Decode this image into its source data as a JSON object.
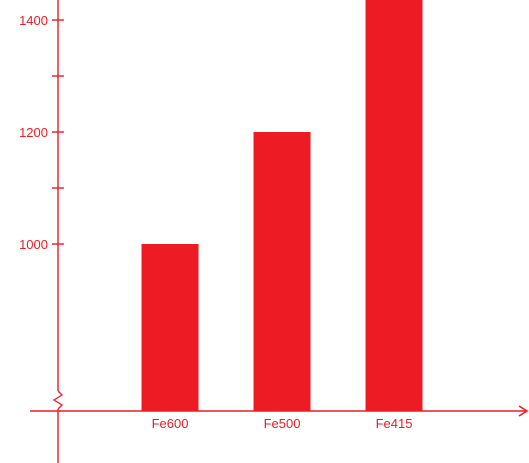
{
  "chart_data": {
    "type": "bar",
    "categories": [
      "Fe600",
      "Fe500",
      "Fe415"
    ],
    "values": [
      1000,
      1200,
      1500
    ],
    "title": "",
    "xlabel": "",
    "ylabel": "",
    "y_tick_labels": [
      "1400",
      "1200",
      "1000"
    ],
    "y_tick_values": [
      1400,
      1200,
      1000
    ],
    "y_minor_tick_values": [
      1300,
      1100
    ],
    "y_axis_broken": true,
    "color": "#ED1C24",
    "grid": false
  }
}
